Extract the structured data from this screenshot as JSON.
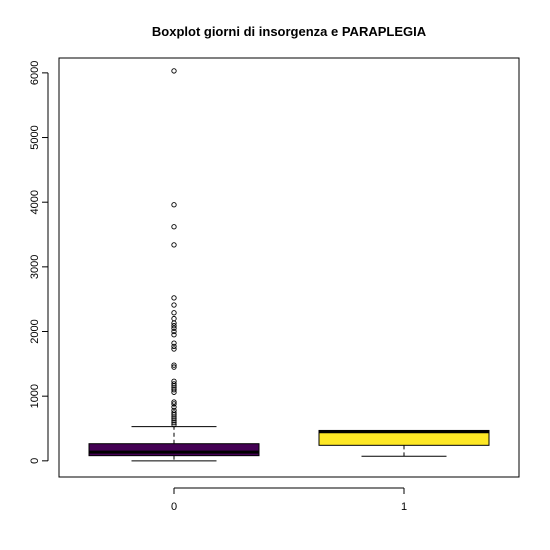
{
  "chart_data": {
    "type": "boxplot",
    "title": "Boxplot giorni di insorgenza e PARAPLEGIA",
    "xlabel": "",
    "ylabel": "",
    "categories": [
      "0",
      "1"
    ],
    "ylim": [
      -250,
      6230
    ],
    "yticks": [
      0,
      1000,
      2000,
      3000,
      4000,
      5000,
      6000
    ],
    "grid": false,
    "boxes": [
      {
        "name": "0",
        "whisker_low": 0,
        "q1": 80,
        "median": 135,
        "q3": 265,
        "whisker_high": 530,
        "fill": "#440154",
        "outliers": [
          560,
          590,
          620,
          650,
          680,
          710,
          740,
          780,
          830,
          880,
          910,
          1060,
          1100,
          1130,
          1160,
          1190,
          1230,
          1450,
          1480,
          1730,
          1770,
          1820,
          1950,
          2000,
          2050,
          2090,
          2130,
          2200,
          2290,
          2410,
          2520,
          3340,
          3620,
          3960,
          6030
        ]
      },
      {
        "name": "1",
        "whisker_low": 70,
        "q1": 240,
        "median": 450,
        "q3": 470,
        "whisker_high": 470,
        "fill": "#FDE725",
        "outliers": []
      }
    ]
  }
}
